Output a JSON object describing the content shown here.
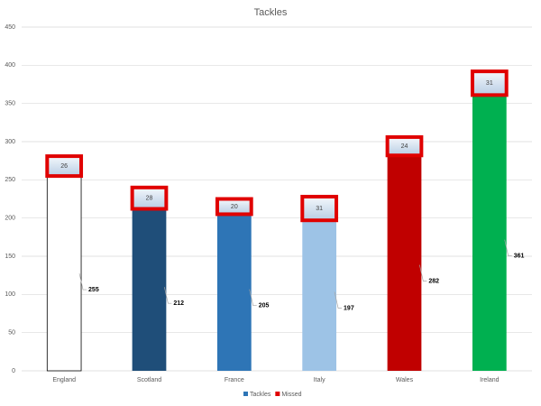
{
  "chart_data": {
    "type": "stacked-bar",
    "title": "Tackles",
    "categories": [
      "England",
      "Scotland",
      "France",
      "Italy",
      "Wales",
      "Ireland"
    ],
    "series": [
      {
        "name": "Tackles",
        "color": "#2e75b6",
        "colors": [
          "#ffffff",
          "#1f4e79",
          "#2e75b6",
          "#9dc3e6",
          "#c00000",
          "#00b050"
        ],
        "values": [
          255,
          212,
          205,
          197,
          282,
          361
        ]
      },
      {
        "name": "Missed",
        "color": "#e00000",
        "values": [
          26,
          28,
          20,
          31,
          24,
          31
        ]
      }
    ],
    "ylim": [
      0,
      450
    ],
    "yticks": [
      0,
      50,
      100,
      150,
      200,
      250,
      300,
      350,
      400,
      450
    ],
    "grid": true,
    "legend": "bottom"
  }
}
